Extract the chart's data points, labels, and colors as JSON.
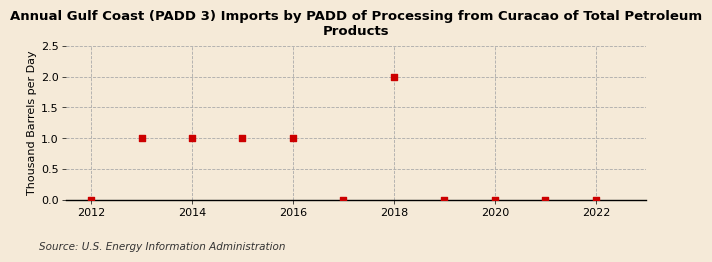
{
  "title": "Annual Gulf Coast (PADD 3) Imports by PADD of Processing from Curacao of Total Petroleum\nProducts",
  "ylabel": "Thousand Barrels per Day",
  "source": "Source: U.S. Energy Information Administration",
  "background_color": "#f5ead8",
  "plot_background_color": "#f5ead8",
  "data_x": [
    2012,
    2013,
    2014,
    2015,
    2016,
    2017,
    2018,
    2019,
    2020,
    2021,
    2022
  ],
  "data_y": [
    0.0,
    1.0,
    1.0,
    1.0,
    1.0,
    0.0,
    2.0,
    0.0,
    0.0,
    0.0,
    0.0
  ],
  "marker_color": "#cc0000",
  "marker_size": 4,
  "xlim": [
    2011.5,
    2023.0
  ],
  "ylim": [
    0,
    2.5
  ],
  "yticks": [
    0.0,
    0.5,
    1.0,
    1.5,
    2.0,
    2.5
  ],
  "xticks": [
    2012,
    2014,
    2016,
    2018,
    2020,
    2022
  ],
  "grid_color": "#aaaaaa",
  "title_fontsize": 9.5,
  "label_fontsize": 8,
  "tick_fontsize": 8,
  "source_fontsize": 7.5
}
